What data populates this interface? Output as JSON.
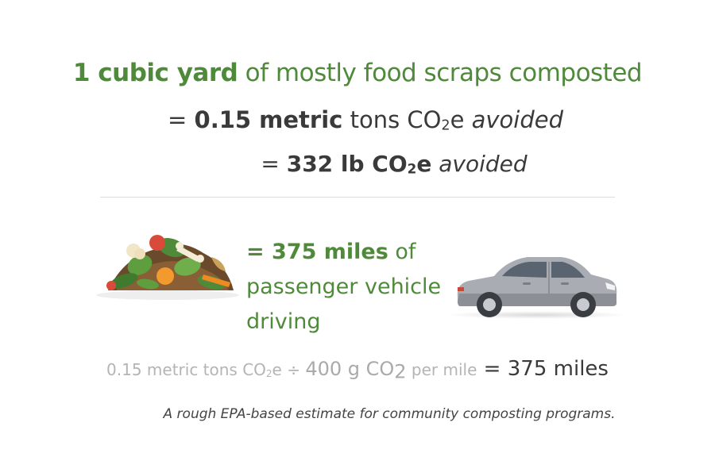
{
  "headline": {
    "amount": "1 cubic yard",
    "rest": " of mostly food scraps composted"
  },
  "line_metric_tons": {
    "prefix": "= ",
    "value": "0.15 metric",
    "unit": " tons CO",
    "sub": "2",
    "suffix_e": "e",
    "avoided": " avoided"
  },
  "line_pounds": {
    "prefix": "= ",
    "value": "332 lb CO",
    "sub": "2",
    "suffix_e": "e",
    "avoided": " avoided"
  },
  "driving": {
    "value": "= 375 miles",
    "of": " of",
    "line2": "passenger vehicle",
    "line3": "driving"
  },
  "formula": {
    "tons": "0.15 metric tons CO",
    "tons_sub": "2",
    "tons_e": "e",
    "divide": " ÷ ",
    "grams": "400 g CO",
    "grams_sub": "2",
    "per_mile": " per mile",
    "equals": "  = ",
    "result": "375 miles"
  },
  "note": "A rough EPA-based estimate for community composting programs.",
  "icons": {
    "compost": "compost-pile-icon",
    "car": "car-icon"
  },
  "colors": {
    "accent_green": "#4f8a3a",
    "dark_text": "#3a3a3a",
    "muted_text": "#b4b4b4"
  }
}
